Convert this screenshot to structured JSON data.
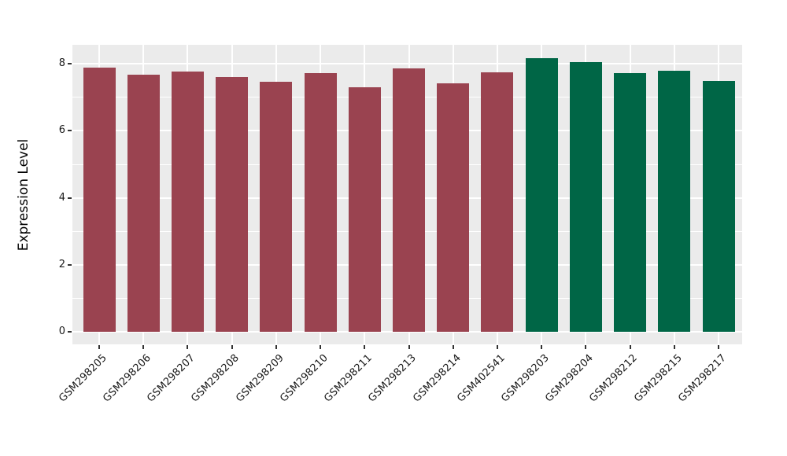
{
  "chart_data": {
    "type": "bar",
    "title": "",
    "xlabel": "",
    "ylabel": "Expression Level",
    "categories": [
      "GSM298205",
      "GSM298206",
      "GSM298207",
      "GSM298208",
      "GSM298209",
      "GSM298210",
      "GSM298211",
      "GSM298213",
      "GSM298214",
      "GSM402541",
      "GSM298203",
      "GSM298204",
      "GSM298212",
      "GSM298215",
      "GSM298217"
    ],
    "values": [
      7.88,
      7.68,
      7.78,
      7.61,
      7.46,
      7.72,
      7.29,
      7.87,
      7.42,
      7.75,
      8.17,
      8.04,
      7.72,
      7.8,
      7.49
    ],
    "bar_colors": [
      "#9A4350",
      "#9A4350",
      "#9A4350",
      "#9A4350",
      "#9A4350",
      "#9A4350",
      "#9A4350",
      "#9A4350",
      "#9A4350",
      "#9A4350",
      "#006646",
      "#006646",
      "#006646",
      "#006646",
      "#006646"
    ],
    "group_colors": {
      "left_group": "#9A4350",
      "right_group": "#006646"
    },
    "yticks": [
      0,
      2,
      4,
      6,
      8
    ],
    "yticks_minor": [
      1,
      3,
      5,
      7
    ],
    "ylim": [
      0,
      8.56
    ],
    "grid": true,
    "legend_position": "none",
    "panel_background": "#EBEBEB",
    "gridline_color": "#FFFFFF"
  }
}
